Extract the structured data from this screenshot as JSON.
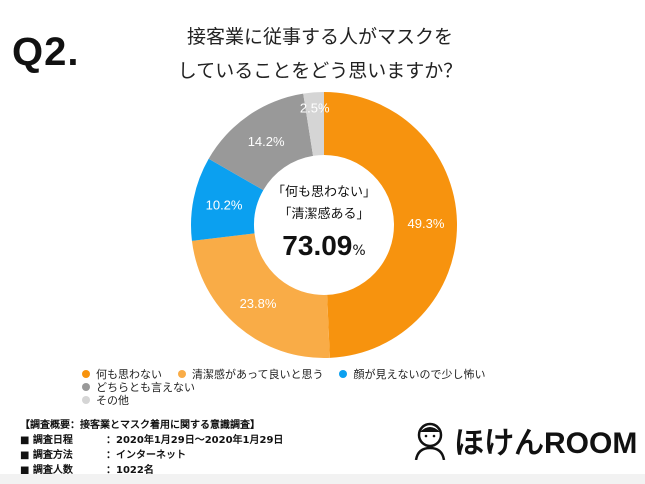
{
  "question_label": "Q2.",
  "title_lines": [
    "接客業に従事する人がマスクを",
    "していることをどう思いますか？"
  ],
  "center": {
    "line1": "「何も思わない」",
    "line2": "「清潔感ある」",
    "value": "73.09",
    "unit": "%"
  },
  "chart_data": {
    "type": "pie",
    "donut": true,
    "start": "top",
    "direction": "clockwise",
    "categories": [
      "何も思わない",
      "清潔感があって良いと思う",
      "顔が見えないので少し怖い",
      "どちらとも言えない",
      "その他"
    ],
    "values": [
      49.3,
      23.8,
      10.2,
      14.2,
      2.5
    ],
    "labels": [
      "49.3%",
      "23.8%",
      "10.2%",
      "14.2%",
      "2.5%"
    ],
    "colors": [
      "#F7930E",
      "#F9AC47",
      "#0BA0F0",
      "#999999",
      "#D5D5D5"
    ],
    "legend_position": "bottom"
  },
  "survey": {
    "heading": "【調査概要：接客業とマスク着用に関する意識調査】",
    "rows": [
      {
        "key": "■ 調査日程",
        "value": "：2020年1月29日〜2020年1月29日"
      },
      {
        "key": "■ 調査方法",
        "value": "：インターネット"
      },
      {
        "key": "■ 調査人数",
        "value": "：1022名"
      }
    ]
  },
  "logo": {
    "text": "ほけんROOM",
    "icon": "person-face-icon"
  }
}
